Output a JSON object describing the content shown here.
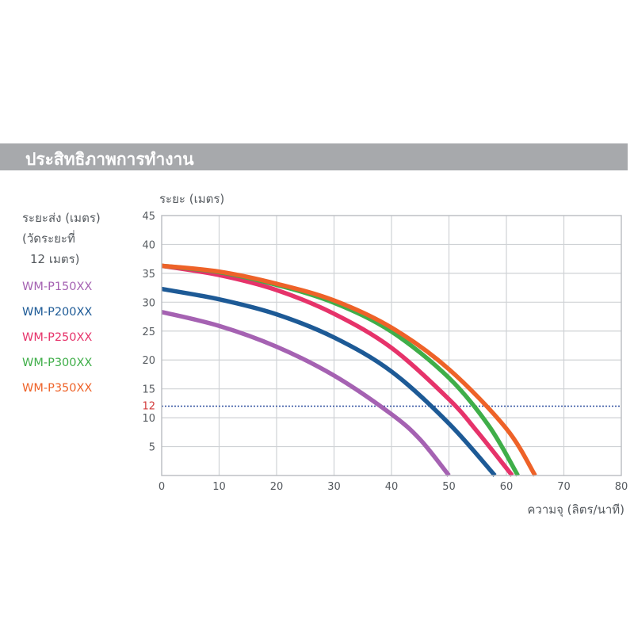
{
  "header": {
    "title": "ประสิทธิภาพการทำงาน"
  },
  "legend": {
    "heading_lines": [
      "ระยะส่ง (เมตร)",
      "(วัดระยะที่",
      "12 เมตร)"
    ]
  },
  "chart_data": {
    "type": "line",
    "xlabel": "ความจุ (ลิตร/นาที)",
    "ylabel": "ระยะ (เมตร)",
    "xlim": [
      0,
      80
    ],
    "ylim": [
      0,
      45
    ],
    "xticks": [
      0,
      10,
      20,
      30,
      40,
      50,
      60,
      70,
      80
    ],
    "yticks": [
      5,
      10,
      15,
      20,
      25,
      30,
      35,
      40,
      45
    ],
    "grid": true,
    "reference_line": {
      "y": 12,
      "label": "12",
      "color": "#2e4f9e",
      "style": "dotted"
    },
    "legend_position": "left",
    "series": [
      {
        "name": "WM-P150XX",
        "color": "#a562b2",
        "x": [
          0,
          10,
          20,
          30,
          40,
          45,
          50
        ],
        "y": [
          28.3,
          25.9,
          22.3,
          17.3,
          10.6,
          6.2,
          0
        ]
      },
      {
        "name": "WM-P200XX",
        "color": "#1d5a96",
        "x": [
          0,
          10,
          20,
          30,
          40,
          50,
          58
        ],
        "y": [
          32.3,
          30.5,
          27.9,
          23.9,
          18.0,
          9.0,
          0
        ]
      },
      {
        "name": "WM-P250XX",
        "color": "#e6336a",
        "x": [
          0,
          10,
          20,
          30,
          40,
          50,
          55,
          61
        ],
        "y": [
          36.3,
          34.7,
          32.1,
          28.0,
          22.1,
          13.2,
          7.5,
          0
        ]
      },
      {
        "name": "WM-P300XX",
        "color": "#3fae49",
        "x": [
          0,
          10,
          20,
          30,
          40,
          50,
          57,
          62
        ],
        "y": [
          36.3,
          35.2,
          33.0,
          29.9,
          24.9,
          16.9,
          8.5,
          0
        ]
      },
      {
        "name": "WM-P350XX",
        "color": "#ee6228",
        "x": [
          0,
          10,
          20,
          30,
          40,
          50,
          60,
          65
        ],
        "y": [
          36.3,
          35.3,
          33.2,
          30.3,
          25.6,
          18.4,
          8.1,
          0
        ]
      }
    ]
  }
}
